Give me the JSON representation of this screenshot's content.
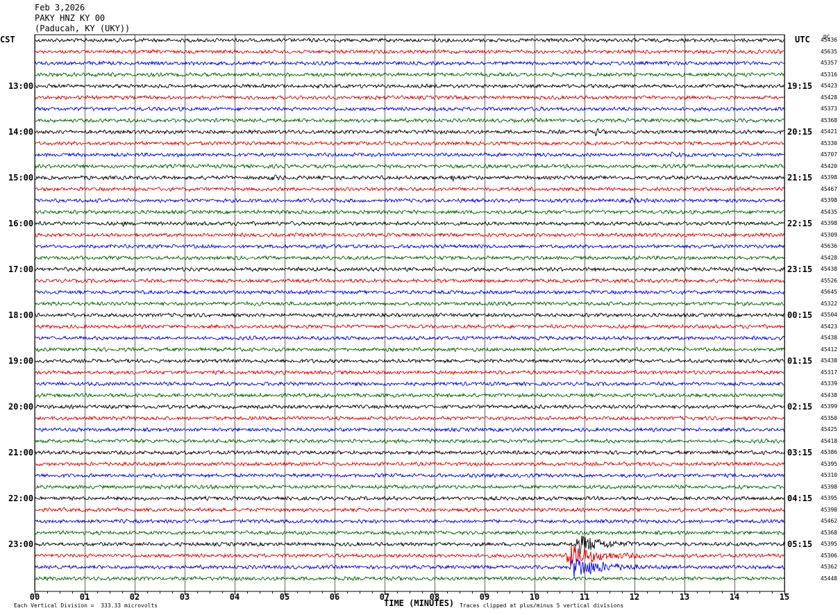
{
  "header": {
    "date": "Feb 3,2026",
    "station": "PAKY HNZ KY 00",
    "location": "(Paducah, KY (UKY))"
  },
  "left_axis_label": "CST",
  "right_axis_label": "UTC",
  "dc_label": "DC",
  "footer": {
    "scale_note": "Each Vertical Division =  333.33 microvolts",
    "xlabel": "TIME (MINUTES)",
    "clip_note": "Traces clipped at plus/minus 5 vertical divisions"
  },
  "colors": {
    "trace_cycle": [
      "#000000",
      "#e00000",
      "#0000e0",
      "#006400"
    ],
    "grid": "#000000"
  },
  "chart_data": {
    "type": "line",
    "title": "",
    "xlabel": "TIME (MINUTES)",
    "xlim": [
      0,
      15
    ],
    "x_ticks": [
      "00",
      "01",
      "02",
      "03",
      "04",
      "05",
      "06",
      "07",
      "08",
      "09",
      "10",
      "11",
      "12",
      "13",
      "14",
      "15"
    ],
    "traces_per_hour": 4,
    "trace_count": 48,
    "cst_labels": [
      "13:00",
      "14:00",
      "15:00",
      "16:00",
      "17:00",
      "18:00",
      "19:00",
      "20:00",
      "21:00",
      "22:00",
      "23:00"
    ],
    "utc_labels": [
      "19:15",
      "20:15",
      "21:15",
      "22:15",
      "23:15",
      "00:15",
      "01:15",
      "02:15",
      "03:15",
      "04:15",
      "05:15"
    ],
    "dc_offsets": [
      "45436",
      "45635",
      "45357",
      "45316",
      "45423",
      "45428",
      "45373",
      "45368",
      "45421",
      "45330",
      "45707",
      "45420",
      "45398",
      "45467",
      "45398",
      "45435",
      "45398",
      "45309",
      "45636",
      "45428",
      "45438",
      "45526",
      "45645",
      "45322",
      "45504",
      "45423",
      "45438",
      "45412",
      "45438",
      "45317",
      "45339",
      "45438",
      "45399",
      "45350",
      "45425",
      "45418",
      "45386",
      "45395",
      "45310",
      "45398",
      "45395",
      "45390",
      "45462",
      "45368",
      "45395",
      "45306",
      "45362",
      "45448"
    ],
    "events": [
      {
        "trace": 44,
        "minute": 10.8,
        "duration": 1.3,
        "amplitude": 4.8
      },
      {
        "trace": 45,
        "minute": 10.6,
        "duration": 1.6,
        "amplitude": 5.5
      },
      {
        "trace": 46,
        "minute": 10.7,
        "duration": 1.5,
        "amplitude": 5.5
      },
      {
        "trace": 8,
        "minute": 11.2,
        "duration": 0.3,
        "amplitude": 1.2
      },
      {
        "trace": 10,
        "minute": 12.7,
        "duration": 0.6,
        "amplitude": 1.0
      },
      {
        "trace": 12,
        "minute": 4.7,
        "duration": 0.4,
        "amplitude": 0.9
      },
      {
        "trace": 12,
        "minute": 8.3,
        "duration": 0.6,
        "amplitude": 0.9
      },
      {
        "trace": 14,
        "minute": 11.9,
        "duration": 0.3,
        "amplitude": 1.1
      },
      {
        "trace": 16,
        "minute": 1.75,
        "duration": 0.15,
        "amplitude": 1.0
      },
      {
        "trace": 20,
        "minute": 8.9,
        "duration": 0.15,
        "amplitude": 1.0
      }
    ]
  }
}
